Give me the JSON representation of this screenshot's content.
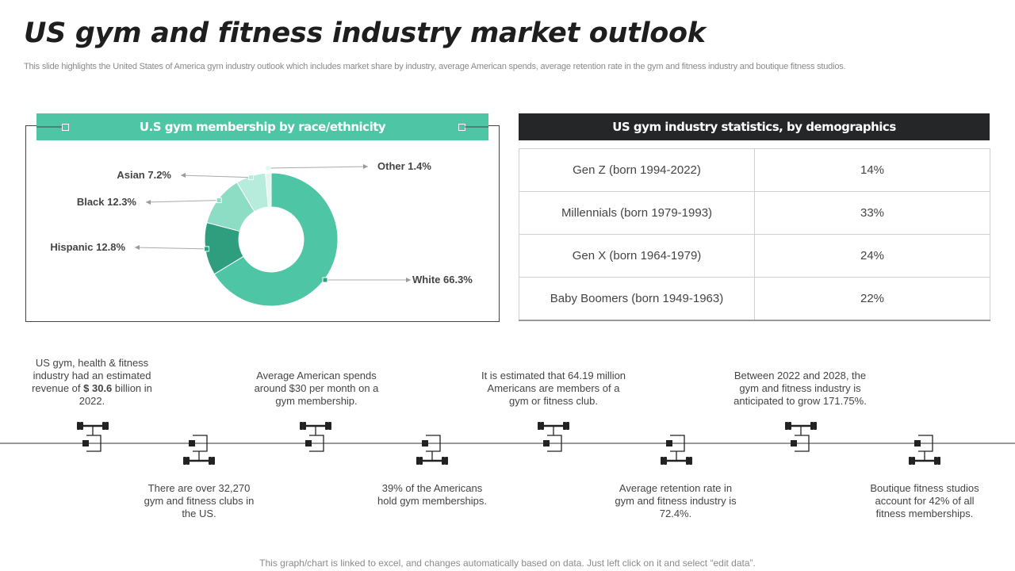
{
  "page": {
    "title": "US gym and fitness industry market outlook",
    "subtitle": "This slide highlights the United States of America gym industry outlook which includes market share by industry, average American spends, average retention rate in the gym and fitness industry and boutique fitness studios.",
    "footer": "This graph/chart is linked to excel,  and changes automatically based on data. Just left click on it and select “edit data”."
  },
  "chart_data": {
    "type": "pie",
    "title": "U.S gym membership by race/ethnicity",
    "categories": [
      "White",
      "Hispanic",
      "Black",
      "Asian",
      "Other"
    ],
    "values": [
      66.3,
      12.8,
      12.3,
      7.2,
      1.4
    ],
    "labels": [
      "White 66.3%",
      "Hispanic 12.8%",
      "Black 12.3%",
      "Asian 7.2%",
      "Other 1.4%"
    ],
    "colors": [
      "#4ec5a5",
      "#2f9e7f",
      "#8ddcc4",
      "#b7ebdc",
      "#e3f6f0"
    ]
  },
  "stats": {
    "title": "US gym industry statistics, by demographics",
    "rows": [
      {
        "label": "Gen Z (born 1994-2022)",
        "value": "14%"
      },
      {
        "label": "Millennials  (born 1979-1993)",
        "value": "33%"
      },
      {
        "label": "Gen X (born 1964-1979)",
        "value": "24%"
      },
      {
        "label": "Baby Boomers (born 1949-1963)",
        "value": "22%"
      }
    ]
  },
  "facts": {
    "f1_pre": "US gym, health & fitness industry had an estimated revenue  of ",
    "f1_bold": "$ 30.6",
    "f1_post": " billion in 2022.",
    "f2": "There are over  32,270 gym and fitness clubs in the US.",
    "f3": "Average  American spends around $30 per month on a gym membership.",
    "f4": "39% of the Americans hold gym memberships.",
    "f5": "It is estimated that 64.19 million Americans are members of a gym or fitness club.",
    "f6": "Average  retention rate in gym and fitness industry is 72.4%.",
    "f7": "Between 2022 and 2028, the gym and fitness industry is anticipated to grow  171.75%.",
    "f8": "Boutique fitness studios account for 42% of all fitness memberships."
  },
  "icons": {
    "timeline": "dumbbell-icon"
  }
}
